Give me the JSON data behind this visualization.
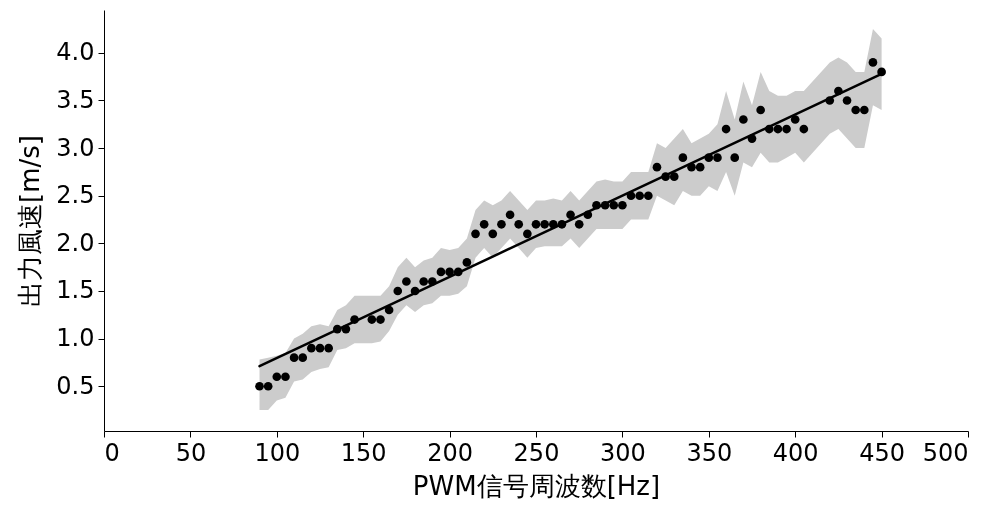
{
  "chart_data": {
    "type": "scatter",
    "xlabel": "PWM信号周波数[Hz]",
    "ylabel": "出力風速[m/s]",
    "xlim": [
      0,
      500
    ],
    "xticks": [
      0,
      50,
      100,
      150,
      200,
      250,
      300,
      350,
      400,
      450,
      500
    ],
    "ylim": [
      0.03,
      4.45
    ],
    "yticks": [
      0.5,
      {
        "value": 1,
        "label": "1.0"
      },
      1.5,
      {
        "value": 2,
        "label": "2.0"
      },
      2.5,
      {
        "value": 3,
        "label": "3.0"
      },
      3.5,
      {
        "value": 4,
        "label": "4.0"
      }
    ],
    "grid": false,
    "series": [
      {
        "marker": "circle",
        "color": "#000000",
        "x": [
          90,
          95,
          100,
          105,
          110,
          115,
          120,
          125,
          130,
          135,
          140,
          145,
          155,
          160,
          165,
          170,
          175,
          180,
          185,
          190,
          195,
          200,
          205,
          210,
          215,
          220,
          225,
          230,
          235,
          240,
          245,
          250,
          255,
          260,
          265,
          270,
          275,
          280,
          285,
          290,
          295,
          300,
          305,
          310,
          315,
          320,
          325,
          330,
          335,
          340,
          345,
          350,
          355,
          360,
          365,
          370,
          375,
          380,
          385,
          390,
          395,
          400,
          405,
          420,
          425,
          430,
          435,
          440,
          445,
          450
        ],
        "values": [
          0.5,
          0.5,
          0.6,
          0.6,
          0.8,
          0.8,
          0.9,
          0.9,
          0.9,
          1.1,
          1.1,
          1.2,
          1.2,
          1.2,
          1.3,
          1.5,
          1.6,
          1.5,
          1.6,
          1.6,
          1.7,
          1.7,
          1.7,
          1.8,
          2.1,
          2.2,
          2.1,
          2.2,
          2.3,
          2.2,
          2.1,
          2.2,
          2.2,
          2.2,
          2.2,
          2.3,
          2.2,
          2.3,
          2.4,
          2.4,
          2.4,
          2.4,
          2.5,
          2.5,
          2.5,
          2.8,
          2.7,
          2.7,
          2.9,
          2.8,
          2.8,
          2.9,
          2.9,
          3.2,
          2.9,
          3.3,
          3.1,
          3.4,
          3.2,
          3.2,
          3.2,
          3.3,
          3.2,
          3.5,
          3.6,
          3.5,
          3.4,
          3.4,
          3.9,
          3.8
        ],
        "lower": [
          0.25,
          0.25,
          0.35,
          0.38,
          0.55,
          0.57,
          0.65,
          0.68,
          0.7,
          0.88,
          0.9,
          0.95,
          0.95,
          0.97,
          1.08,
          1.25,
          1.35,
          1.28,
          1.35,
          1.37,
          1.45,
          1.45,
          1.47,
          1.55,
          1.85,
          1.95,
          1.85,
          1.95,
          2.05,
          1.95,
          1.85,
          1.95,
          1.97,
          1.97,
          1.97,
          2.05,
          1.95,
          2.05,
          2.15,
          2.15,
          2.15,
          2.15,
          2.25,
          2.25,
          2.25,
          2.5,
          2.45,
          2.4,
          2.55,
          2.5,
          2.5,
          2.6,
          2.55,
          2.75,
          2.5,
          2.85,
          2.8,
          2.95,
          2.85,
          2.85,
          2.9,
          2.95,
          2.85,
          3.15,
          3.2,
          3.1,
          3.0,
          3.0,
          3.45,
          3.4
        ],
        "upper": [
          0.78,
          0.8,
          0.82,
          0.85,
          1.0,
          1.05,
          1.13,
          1.15,
          1.13,
          1.3,
          1.35,
          1.45,
          1.45,
          1.45,
          1.55,
          1.75,
          1.85,
          1.75,
          1.82,
          1.85,
          1.95,
          1.93,
          1.95,
          2.05,
          2.35,
          2.45,
          2.4,
          2.45,
          2.55,
          2.45,
          2.35,
          2.45,
          2.45,
          2.47,
          2.45,
          2.55,
          2.45,
          2.55,
          2.65,
          2.67,
          2.65,
          2.65,
          2.75,
          2.75,
          2.75,
          3.05,
          3.0,
          3.1,
          3.2,
          3.05,
          3.1,
          3.15,
          3.25,
          3.6,
          3.3,
          3.7,
          3.45,
          3.8,
          3.6,
          3.55,
          3.55,
          3.6,
          3.6,
          3.9,
          3.95,
          3.9,
          3.8,
          3.8,
          4.25,
          4.15
        ]
      },
      {
        "type": "line",
        "color": "#000000",
        "line_style": "solid",
        "x": [
          90,
          450
        ],
        "values": [
          0.71,
          3.78
        ]
      }
    ]
  }
}
